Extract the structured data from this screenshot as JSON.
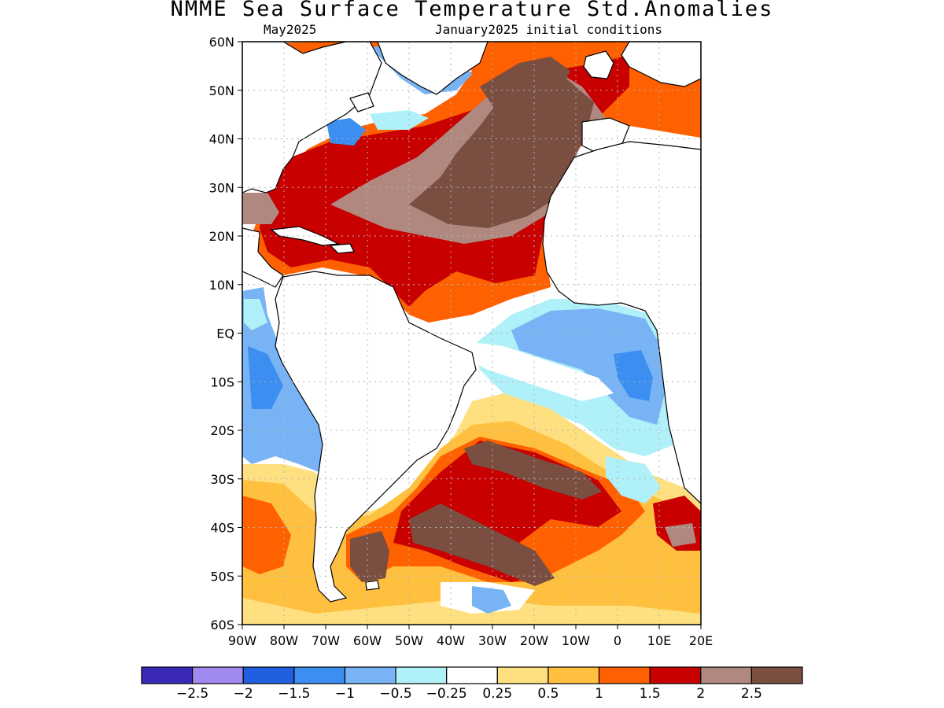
{
  "title": "NMME Sea Surface Temperature Std.Anomalies",
  "valid_month": "May2025",
  "initial_conditions": "January2025 initial conditions",
  "lat_labels": [
    "60N",
    "50N",
    "40N",
    "30N",
    "20N",
    "10N",
    "EQ",
    "10S",
    "20S",
    "30S",
    "40S",
    "50S",
    "60S"
  ],
  "lon_labels": [
    "90W",
    "80W",
    "70W",
    "60W",
    "50W",
    "40W",
    "30W",
    "20W",
    "10W",
    "0",
    "10E",
    "20E"
  ],
  "colorbar": {
    "colors": [
      "#3a28b8",
      "#a08af0",
      "#2060e0",
      "#3c8ff0",
      "#78b4f5",
      "#b0f0f8",
      "#ffffff",
      "#ffe080",
      "#ffc040",
      "#ff6000",
      "#c80000",
      "#b08880",
      "#7a4e40"
    ],
    "labels": [
      "-2.5",
      "-2",
      "-1.5",
      "-1",
      "-0.5",
      "-0.25",
      "0.25",
      "0.5",
      "1",
      "1.5",
      "2",
      "2.5"
    ]
  },
  "legend_colors": {
    "land": "#ffffff",
    "coast": "#000000",
    "grid": "#b4b4b4"
  }
}
